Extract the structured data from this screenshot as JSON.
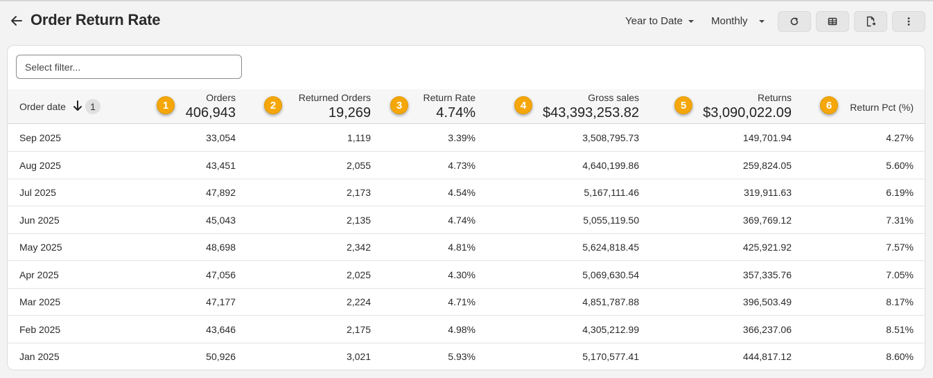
{
  "header": {
    "title": "Order Return Rate",
    "period_dropdown": "Year to Date",
    "granularity_dropdown": "Monthly",
    "toolbar_icons": [
      "refresh-icon",
      "table-icon",
      "export-icon",
      "more-vertical-icon"
    ]
  },
  "filter": {
    "placeholder": "Select filter..."
  },
  "colors": {
    "marker": "#f5a70a",
    "header_bg": "#f6f6f6"
  },
  "table": {
    "date_column": {
      "label": "Order date",
      "sort_badge": "1"
    },
    "columns": [
      {
        "marker": "1",
        "label": "Orders",
        "total": "406,943"
      },
      {
        "marker": "2",
        "label": "Returned Orders",
        "total": "19,269"
      },
      {
        "marker": "3",
        "label": "Return Rate",
        "total": "4.74%"
      },
      {
        "marker": "4",
        "label": "Gross sales",
        "total": "$43,393,253.82"
      },
      {
        "marker": "5",
        "label": "Returns",
        "total": "$3,090,022.09"
      },
      {
        "marker": "6",
        "label": "Return Pct (%)",
        "total": ""
      }
    ],
    "rows": [
      [
        "Sep 2025",
        "33,054",
        "1,119",
        "3.39%",
        "3,508,795.73",
        "149,701.94",
        "4.27%"
      ],
      [
        "Aug 2025",
        "43,451",
        "2,055",
        "4.73%",
        "4,640,199.86",
        "259,824.05",
        "5.60%"
      ],
      [
        "Jul 2025",
        "47,892",
        "2,173",
        "4.54%",
        "5,167,111.46",
        "319,911.63",
        "6.19%"
      ],
      [
        "Jun 2025",
        "45,043",
        "2,135",
        "4.74%",
        "5,055,119.50",
        "369,769.12",
        "7.31%"
      ],
      [
        "May 2025",
        "48,698",
        "2,342",
        "4.81%",
        "5,624,818.45",
        "425,921.92",
        "7.57%"
      ],
      [
        "Apr 2025",
        "47,056",
        "2,025",
        "4.30%",
        "5,069,630.54",
        "357,335.76",
        "7.05%"
      ],
      [
        "Mar 2025",
        "47,177",
        "2,224",
        "4.71%",
        "4,851,787.88",
        "396,503.49",
        "8.17%"
      ],
      [
        "Feb 2025",
        "43,646",
        "2,175",
        "4.98%",
        "4,305,212.99",
        "366,237.06",
        "8.51%"
      ],
      [
        "Jan 2025",
        "50,926",
        "3,021",
        "5.93%",
        "5,170,577.41",
        "444,817.12",
        "8.60%"
      ]
    ]
  }
}
